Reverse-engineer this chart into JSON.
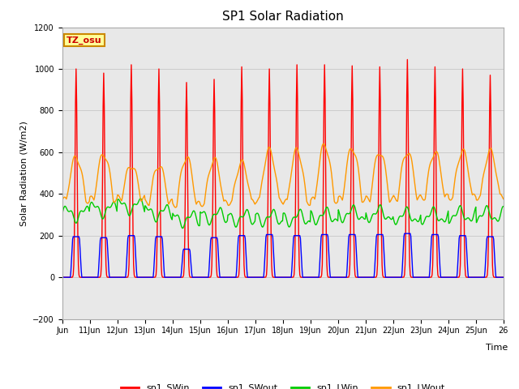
{
  "title": "SP1 Solar Radiation",
  "ylabel": "Solar Radiation (W/m2)",
  "xlabel": "Time",
  "annotation": "TZ_osu",
  "ylim": [
    -200,
    1200
  ],
  "yticks": [
    -200,
    0,
    200,
    400,
    600,
    800,
    1000,
    1200
  ],
  "x_tick_labels": [
    "Jun",
    "11Jun",
    "12Jun",
    "13Jun",
    "14Jun",
    "15Jun",
    "16Jun",
    "17Jun",
    "18Jun",
    "19Jun",
    "20Jun",
    "21Jun",
    "22Jun",
    "23Jun",
    "24Jun",
    "25Jun",
    "26"
  ],
  "colors": {
    "sp1_SWin": "#ff0000",
    "sp1_SWout": "#0000ff",
    "sp1_LWin": "#00cc00",
    "sp1_LWout": "#ff9900"
  },
  "grid_color": "#cccccc",
  "bg_color": "#e8e8e8",
  "annotation_bg": "#ffff99",
  "annotation_border": "#cc8800",
  "n_days": 16,
  "hours_per_day": 48,
  "sw_in_peaks": [
    1000,
    980,
    1020,
    1000,
    935,
    950,
    1010,
    1000,
    1020,
    1020,
    1015,
    1010,
    1045,
    1010,
    1000,
    970
  ],
  "sw_out_peaks": [
    195,
    190,
    200,
    195,
    135,
    190,
    200,
    205,
    200,
    205,
    205,
    205,
    210,
    205,
    200,
    195
  ],
  "lw_out_peaks": [
    575,
    590,
    535,
    535,
    575,
    565,
    550,
    610,
    610,
    635,
    620,
    600,
    600,
    600,
    605,
    605
  ],
  "lw_out_nights": [
    370,
    375,
    380,
    360,
    350,
    355,
    360,
    370,
    360,
    370,
    375,
    375,
    380,
    385,
    385,
    385
  ],
  "lw_in_base": [
    305,
    325,
    340,
    310,
    280,
    295,
    285,
    285,
    285,
    295,
    305,
    305,
    295,
    295,
    300,
    300
  ]
}
